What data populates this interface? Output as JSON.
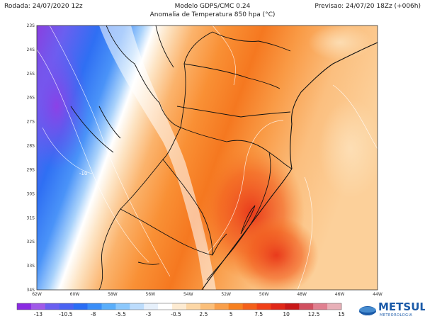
{
  "header": {
    "run": "Rodada: 24/07/2020 12z",
    "model": "Modelo GDPS/CMC 0.24",
    "forecast": "Previsao: 24/07/20 18Zz (+006h)",
    "title": "Anomalia de Temperatura 850 hpa (°C)"
  },
  "map": {
    "lat_labels": [
      "23S",
      "24S",
      "25S",
      "26S",
      "27S",
      "28S",
      "29S",
      "30S",
      "31S",
      "32S",
      "33S",
      "34S"
    ],
    "lon_labels": [
      "62W",
      "60W",
      "58W",
      "56W",
      "54W",
      "52W",
      "50W",
      "48W",
      "46W",
      "44W"
    ],
    "contour_label": "-10"
  },
  "colorbar": {
    "labels": [
      "-13",
      "-10.5",
      "-8",
      "-5.5",
      "-3",
      "-0.5",
      "2.5",
      "5",
      "7.5",
      "10",
      "12.5",
      "15"
    ],
    "colors": [
      "#8a2be2",
      "#a05ae8",
      "#6a5ff0",
      "#4a63f2",
      "#2a6ef5",
      "#3a8ef8",
      "#5aaefa",
      "#8cc8fc",
      "#bcdcfc",
      "#e6f0fb",
      "#ffffff",
      "#fdebd2",
      "#fcd7a6",
      "#fbbf7a",
      "#f99f4a",
      "#f7801f",
      "#f4601a",
      "#f04018",
      "#e02818",
      "#c81818",
      "#d05060",
      "#e08090",
      "#e8b0b8"
    ]
  },
  "logo": {
    "name": "METSUL",
    "tagline": "METEOROLOGIA"
  }
}
